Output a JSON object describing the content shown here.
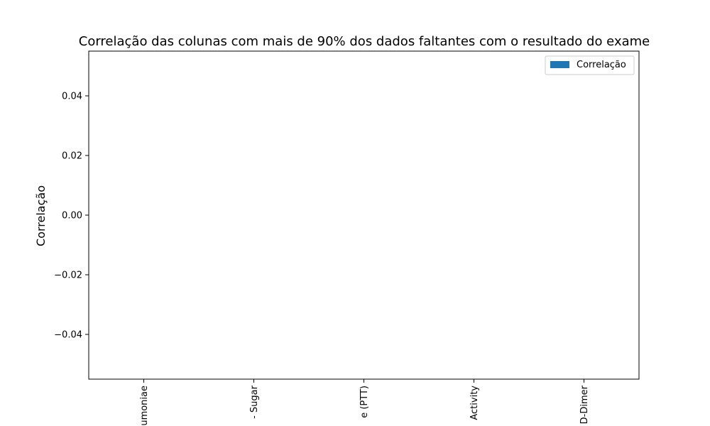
{
  "chart_data": {
    "type": "bar",
    "title": "Correlação das colunas com mais de 90% dos dados faltantes com o resultado do exame",
    "xlabel": "",
    "ylabel": "Correlação",
    "categories": [
      "umoniae",
      "- Sugar",
      "e (PTT)",
      "Activity",
      "D-Dimer"
    ],
    "series": [
      {
        "name": "Correlação",
        "values": [
          null,
          null,
          null,
          null,
          null
        ],
        "color": "#1f77b4"
      }
    ],
    "ylim": [
      -0.055,
      0.055
    ],
    "yticks": [
      -0.04,
      -0.02,
      0.0,
      0.02,
      0.04
    ],
    "ytick_labels": [
      "−0.04",
      "−0.02",
      "0.00",
      "0.02",
      "0.04"
    ],
    "grid": false,
    "legend": {
      "position": "top-right",
      "label": "Correlação"
    }
  }
}
